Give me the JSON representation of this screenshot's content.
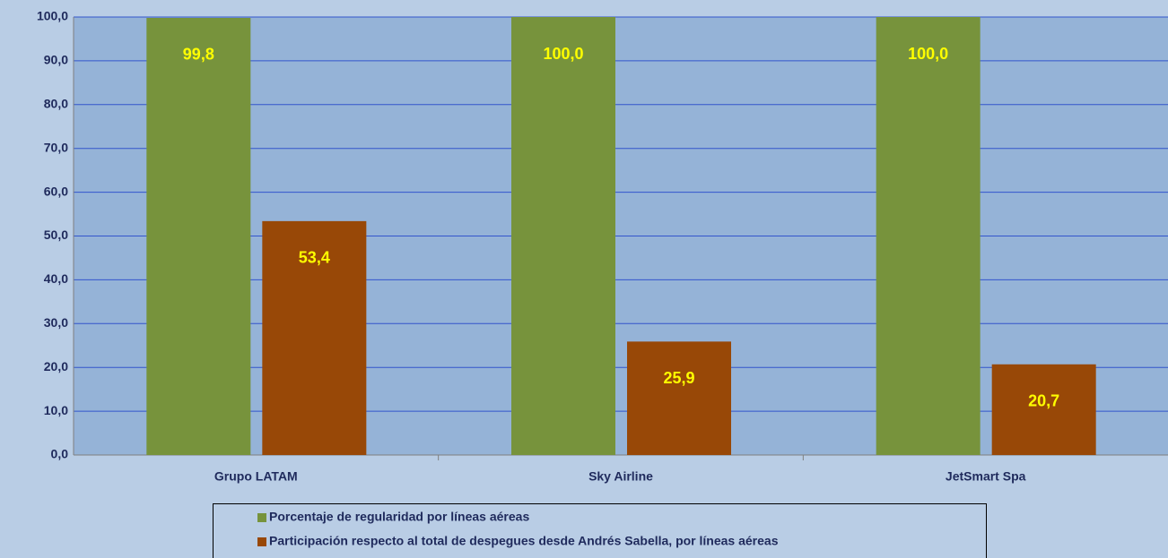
{
  "chart_data": {
    "type": "bar",
    "categories": [
      "Grupo LATAM",
      "Sky Airline",
      "JetSmart Spa"
    ],
    "series": [
      {
        "name": "Porcentaje de regularidad por líneas aéreas",
        "color": "#77933c",
        "values": [
          99.8,
          100.0,
          100.0
        ],
        "value_labels": [
          "99,8",
          "100,0",
          "100,0"
        ]
      },
      {
        "name": "Participación respecto al total de despegues desde Andrés Sabella, por líneas aéreas",
        "color": "#984807",
        "values": [
          53.4,
          25.9,
          20.7
        ],
        "value_labels": [
          "53,4",
          "25,9",
          "20,7"
        ]
      }
    ],
    "ylim": [
      0,
      100
    ],
    "yticks": [
      {
        "value": 0,
        "label": "0,0"
      },
      {
        "value": 10,
        "label": "10,0"
      },
      {
        "value": 20,
        "label": "20,0"
      },
      {
        "value": 30,
        "label": "30,0"
      },
      {
        "value": 40,
        "label": "40,0"
      },
      {
        "value": 50,
        "label": "50,0"
      },
      {
        "value": 60,
        "label": "60,0"
      },
      {
        "value": 70,
        "label": "70,0"
      },
      {
        "value": 80,
        "label": "80,0"
      },
      {
        "value": 90,
        "label": "90,0"
      },
      {
        "value": 100,
        "label": "100,0"
      }
    ],
    "grid": true,
    "legend": "bottom"
  }
}
